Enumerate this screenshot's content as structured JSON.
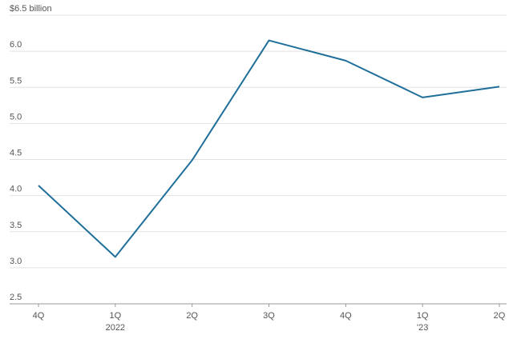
{
  "chart_data": {
    "type": "line",
    "categories": [
      "4Q",
      "1Q",
      "2Q",
      "3Q",
      "4Q",
      "1Q",
      "2Q"
    ],
    "year_labels": [
      null,
      "2022",
      null,
      null,
      null,
      "'23",
      null
    ],
    "series": [
      {
        "color": "#1f6f9a",
        "values": [
          4.14,
          3.15,
          4.49,
          6.15,
          5.87,
          5.36,
          5.51
        ]
      }
    ],
    "ylim": [
      2.5,
      6.5
    ],
    "yticks": [
      2.5,
      3.0,
      3.5,
      4.0,
      4.5,
      5.0,
      5.5,
      6.0,
      {
        "value": 6.5,
        "label": "$6.5 billion"
      }
    ],
    "grid": true
  }
}
